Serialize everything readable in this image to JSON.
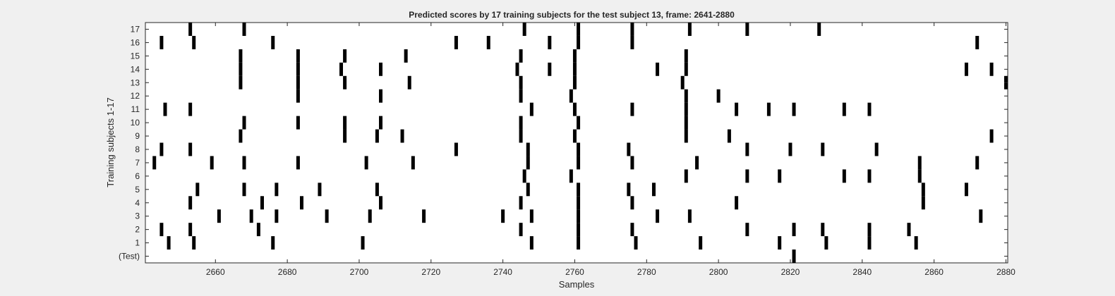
{
  "chart_data": {
    "type": "raster",
    "title": "Predicted scores by 17 training subjects for the test subject 13, frame: 2641-2880",
    "xlabel": "Samples",
    "ylabel": "Training subjects 1-17",
    "xlim": [
      2641,
      2880
    ],
    "x_ticks": [
      2660,
      2680,
      2700,
      2720,
      2740,
      2760,
      2780,
      2800,
      2820,
      2840,
      2860,
      2880
    ],
    "y_ticks": [
      "(Test)",
      "1",
      "2",
      "3",
      "4",
      "5",
      "6",
      "7",
      "8",
      "9",
      "10",
      "11",
      "12",
      "13",
      "14",
      "15",
      "16",
      "17"
    ],
    "grid": false,
    "colors": {
      "background": "#f0f0f0",
      "plot": "#ffffff",
      "marks": "#000000",
      "text": "#262626",
      "axis": "#262626"
    },
    "series": [
      {
        "row": "(Test)",
        "events": [
          2821
        ]
      },
      {
        "row": "1",
        "events": [
          2647,
          2654,
          2676,
          2701,
          2748,
          2761,
          2777,
          2795,
          2817,
          2830,
          2842,
          2855
        ]
      },
      {
        "row": "2",
        "events": [
          2645,
          2653,
          2672,
          2745,
          2761,
          2776,
          2808,
          2821,
          2829,
          2842,
          2853
        ]
      },
      {
        "row": "3",
        "events": [
          2661,
          2670,
          2677,
          2691,
          2703,
          2718,
          2740,
          2748,
          2761,
          2783,
          2792,
          2873
        ]
      },
      {
        "row": "4",
        "events": [
          2653,
          2673,
          2684,
          2706,
          2745,
          2761,
          2776,
          2805,
          2857
        ]
      },
      {
        "row": "5",
        "events": [
          2655,
          2668,
          2677,
          2689,
          2705,
          2747,
          2761,
          2775,
          2782,
          2857,
          2869
        ]
      },
      {
        "row": "6",
        "events": [
          2746,
          2759,
          2791,
          2808,
          2817,
          2835,
          2842,
          2856
        ]
      },
      {
        "row": "7",
        "events": [
          2643,
          2659,
          2668,
          2683,
          2702,
          2715,
          2747,
          2761,
          2776,
          2794,
          2856,
          2872
        ]
      },
      {
        "row": "8",
        "events": [
          2645,
          2653,
          2727,
          2747,
          2761,
          2775,
          2808,
          2820,
          2829,
          2844
        ]
      },
      {
        "row": "9",
        "events": [
          2667,
          2696,
          2705,
          2712,
          2745,
          2760,
          2791,
          2803,
          2876
        ]
      },
      {
        "row": "10",
        "events": [
          2668,
          2683,
          2696,
          2706,
          2745,
          2761,
          2791
        ]
      },
      {
        "row": "11",
        "events": [
          2646,
          2653,
          2748,
          2760,
          2776,
          2791,
          2805,
          2814,
          2821,
          2835,
          2842
        ]
      },
      {
        "row": "12",
        "events": [
          2683,
          2706,
          2745,
          2759,
          2791,
          2800
        ]
      },
      {
        "row": "13",
        "events": [
          2667,
          2683,
          2696,
          2714,
          2745,
          2760,
          2790,
          2880
        ]
      },
      {
        "row": "14",
        "events": [
          2667,
          2683,
          2695,
          2706,
          2744,
          2753,
          2760,
          2783,
          2791,
          2869,
          2876
        ]
      },
      {
        "row": "15",
        "events": [
          2667,
          2683,
          2696,
          2713,
          2745,
          2760,
          2791
        ]
      },
      {
        "row": "16",
        "events": [
          2645,
          2654,
          2676,
          2727,
          2736,
          2753,
          2761,
          2776,
          2872
        ]
      },
      {
        "row": "17",
        "events": [
          2653,
          2668,
          2746,
          2761,
          2776,
          2792,
          2808,
          2828
        ]
      }
    ]
  }
}
